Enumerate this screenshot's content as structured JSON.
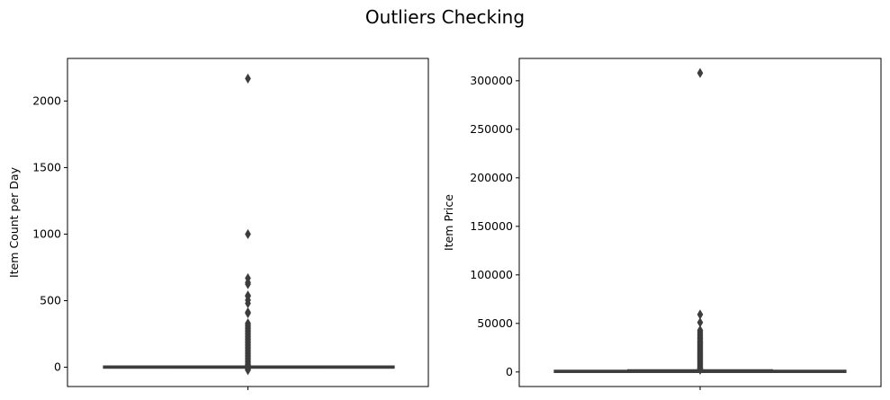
{
  "figure_title": "Outliers Checking",
  "chart_data": [
    {
      "type": "box",
      "title": "",
      "xlabel": "",
      "ylabel": "Item Count per Day",
      "ylim": [
        -145,
        2320
      ],
      "yticks": [
        0,
        500,
        1000,
        1500,
        2000
      ],
      "grid": false,
      "legend": "none",
      "box": {
        "whisker_low": -4,
        "q1": 1,
        "median": 1,
        "q3": 1,
        "whisker_high": 4
      },
      "outliers": [
        2169,
        1000,
        669,
        637,
        624,
        539,
        533,
        504,
        480,
        413,
        405,
        330,
        320,
        310,
        300,
        290,
        280,
        270,
        260,
        250,
        240,
        230,
        220,
        210,
        200,
        190,
        180,
        170,
        160,
        150,
        140,
        130,
        120,
        110,
        100,
        90,
        80,
        70,
        60,
        50,
        40,
        30,
        20,
        15,
        10,
        8,
        6,
        -6,
        -10,
        -16,
        -22
      ],
      "colors": {
        "box_line": "#3d3d3d",
        "box_fill": "#3d3d3d",
        "outlier": "#3d3d3d"
      }
    },
    {
      "type": "box",
      "title": "",
      "xlabel": "",
      "ylabel": "Item Price",
      "ylim": [
        -15000,
        323000
      ],
      "yticks": [
        0,
        50000,
        100000,
        150000,
        200000,
        250000,
        300000
      ],
      "grid": false,
      "legend": "none",
      "box": {
        "whisker_low": 0,
        "q1": 250,
        "median": 399,
        "q3": 1000,
        "whisker_high": 2125
      },
      "outliers": [
        307980,
        59200,
        50999,
        43000,
        41500,
        40000,
        38500,
        37000,
        35700,
        34500,
        33300,
        32000,
        31000,
        30000,
        29000,
        28000,
        27000,
        26000,
        25000,
        24000,
        23000,
        22000,
        21000,
        20000,
        19000,
        18000,
        17000,
        16000,
        15000,
        14000,
        13000,
        12000,
        11000,
        10000,
        9000,
        8000,
        7000,
        6000,
        5000,
        4000,
        3500,
        3000,
        2600,
        2300
      ],
      "colors": {
        "box_line": "#3d3d3d",
        "box_fill": "#3d3d3d",
        "outlier": "#3d3d3d"
      }
    }
  ]
}
